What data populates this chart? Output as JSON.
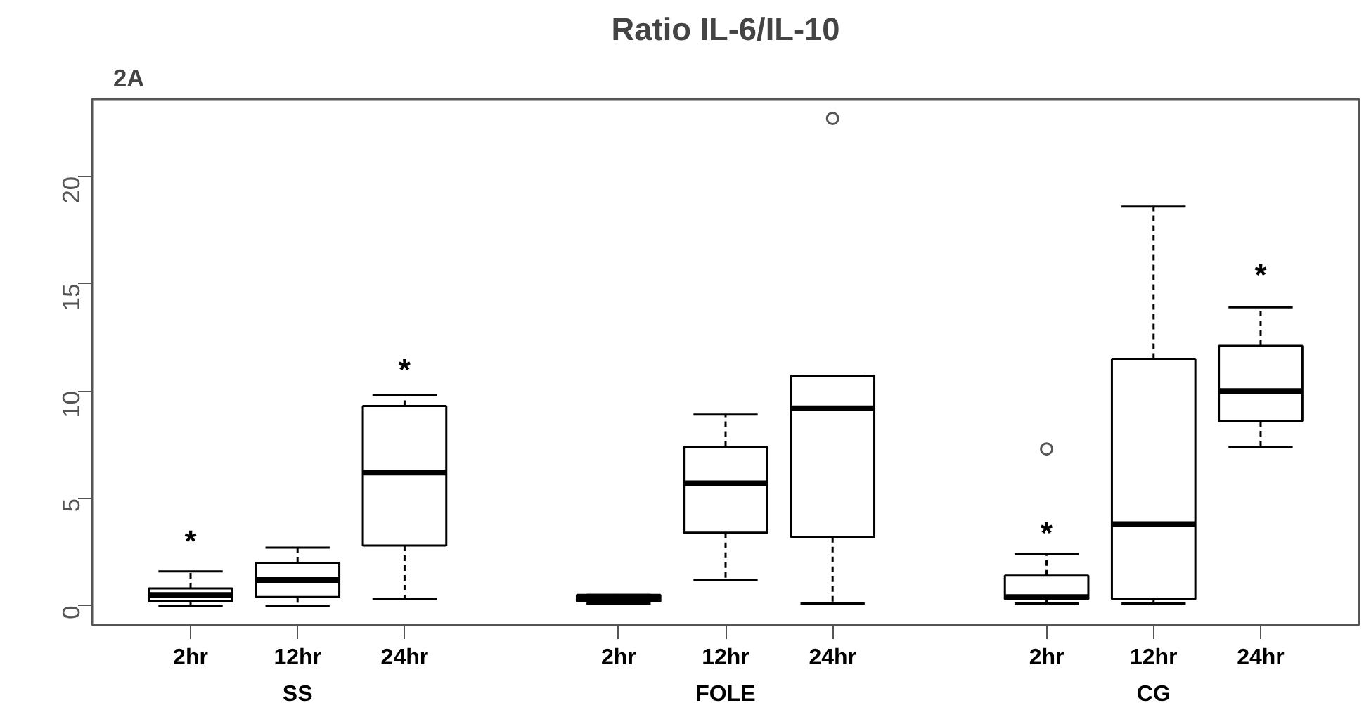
{
  "chart_data": {
    "type": "box",
    "title": "Ratio IL-6/IL-10",
    "annotations": [
      "2A",
      "*",
      "*",
      "*",
      "*",
      "SS",
      "FOLE",
      "CG"
    ],
    "categories": [
      "2hr",
      "12hr",
      "24hr",
      null,
      "2hr",
      "12hr",
      "24hr",
      null,
      "2hr",
      "12hr",
      "24hr"
    ],
    "ylim": [
      -0.9,
      23.6
    ],
    "yticks": [
      0,
      5,
      10,
      15,
      20
    ],
    "boxes": [
      {
        "low": 0.0,
        "q1": 0.2,
        "median": 0.5,
        "q3": 0.8,
        "high": 1.6
      },
      {
        "low": 0.0,
        "q1": 0.4,
        "median": 1.2,
        "q3": 2.0,
        "high": 2.7
      },
      {
        "low": 0.3,
        "q1": 2.8,
        "median": 6.2,
        "q3": 9.3,
        "high": 9.8
      },
      null,
      {
        "low": 0.1,
        "q1": 0.2,
        "median": 0.4,
        "q3": 0.5,
        "high": 0.5
      },
      {
        "low": 1.2,
        "q1": 3.4,
        "median": 5.7,
        "q3": 7.4,
        "high": 8.9
      },
      {
        "low": 0.1,
        "q1": 3.2,
        "median": 9.2,
        "q3": 10.7,
        "high": 10.7,
        "outliers": [
          22.7
        ]
      },
      null,
      {
        "low": 0.1,
        "q1": 0.3,
        "median": 0.4,
        "q3": 1.4,
        "high": 2.4,
        "outliers": [
          7.3
        ]
      },
      {
        "low": 0.1,
        "q1": 0.3,
        "median": 3.8,
        "q3": 11.5,
        "high": 18.6
      },
      {
        "low": 7.4,
        "q1": 8.6,
        "median": 10.0,
        "q3": 12.1,
        "high": 13.9
      }
    ]
  }
}
